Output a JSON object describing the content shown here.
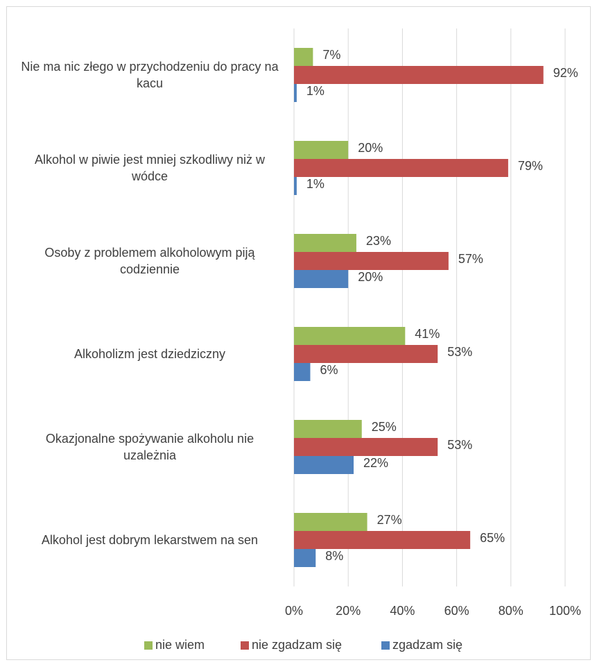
{
  "chart_data": {
    "type": "barh",
    "categories": [
      "Nie ma nic złego w przychodzeniu do pracy na kacu",
      "Alkohol w piwie jest mniej szkodliwy niż w wódce",
      "Osoby z problemem alkoholowym piją codziennie",
      "Alkoholizm jest dziedziczny",
      "Okazjonalne spożywanie alkoholu nie uzależnia",
      "Alkohol jest dobrym lekarstwem na sen"
    ],
    "series": [
      {
        "name": "nie wiem",
        "color": "#9bbb59",
        "values": [
          7,
          20,
          23,
          41,
          25,
          27
        ],
        "value_labels": [
          "7%",
          "20%",
          "23%",
          "41%",
          "25%",
          "27%"
        ]
      },
      {
        "name": "nie zgadzam się",
        "color": "#c0504d",
        "values": [
          92,
          79,
          57,
          53,
          53,
          65
        ],
        "value_labels": [
          "92%",
          "79%",
          "57%",
          "53%",
          "53%",
          "65%"
        ]
      },
      {
        "name": "zgadzam się",
        "color": "#4f81bd",
        "values": [
          1,
          1,
          20,
          6,
          22,
          8
        ],
        "value_labels": [
          "1%",
          "1%",
          "20%",
          "6%",
          "22%",
          "8%"
        ]
      }
    ],
    "xlim": [
      0,
      100
    ],
    "xticks": [
      {
        "value": 0,
        "label": "0%"
      },
      {
        "value": 20,
        "label": "20%"
      },
      {
        "value": 40,
        "label": "40%"
      },
      {
        "value": 60,
        "label": "60%"
      },
      {
        "value": 80,
        "label": "80%"
      },
      {
        "value": 100,
        "label": "100%"
      }
    ],
    "grid": true,
    "legend": "bottom"
  }
}
